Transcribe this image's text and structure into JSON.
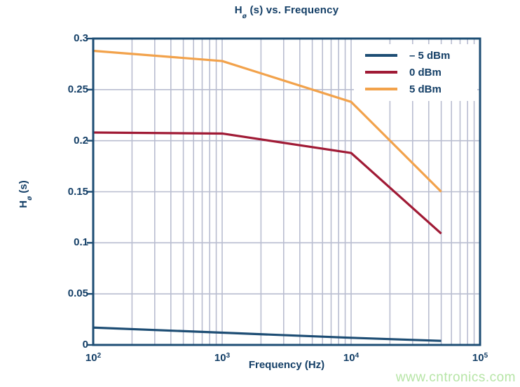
{
  "colors": {
    "text_navy": "#133e66",
    "frame_navy": "#1d4d74",
    "gridline": "#b9bdd0",
    "background": "#ffffff",
    "watermark_green": "#b6e5a6"
  },
  "title": {
    "prefix": "H",
    "sub": "ø",
    "suffix": " (s) vs. Frequency"
  },
  "y_axis_title": {
    "prefix": "H",
    "sub": "ø",
    "suffix": " (s)"
  },
  "watermark": {
    "text": "www.cntronics.com"
  },
  "chart_data": {
    "type": "line",
    "title": "H_ø (s) vs. Frequency",
    "xlabel": "Frequency (Hz)",
    "ylabel": "H_ø (s)",
    "x_scale": "log",
    "xlim": [
      100,
      100000
    ],
    "ylim": [
      0,
      0.3
    ],
    "grid": true,
    "legend_position": "top-right",
    "x_ticks": [
      {
        "base": "10",
        "exp": "2",
        "value": 100
      },
      {
        "base": "10",
        "exp": "3",
        "value": 1000
      },
      {
        "base": "10",
        "exp": "4",
        "value": 10000
      },
      {
        "base": "10",
        "exp": "5",
        "value": 100000
      }
    ],
    "y_ticks": [
      {
        "label": "0",
        "value": 0
      },
      {
        "label": "0.05",
        "value": 0.05
      },
      {
        "label": "0.1",
        "value": 0.1
      },
      {
        "label": "0.15",
        "value": 0.15
      },
      {
        "label": "0.2",
        "value": 0.2
      },
      {
        "label": "0.25",
        "value": 0.25
      },
      {
        "label": "0.3",
        "value": 0.3
      }
    ],
    "series": [
      {
        "name": "– 5 dBm",
        "color": "#1d4d74",
        "x": [
          100,
          1000,
          10000,
          50000
        ],
        "y": [
          0.017,
          0.012,
          0.007,
          0.004
        ]
      },
      {
        "name": "0 dBm",
        "color": "#a01a35",
        "x": [
          100,
          1000,
          10000,
          50000
        ],
        "y": [
          0.208,
          0.207,
          0.188,
          0.109
        ]
      },
      {
        "name": "5 dBm",
        "color": "#f2a24b",
        "x": [
          100,
          1000,
          10000,
          50000
        ],
        "y": [
          0.288,
          0.278,
          0.238,
          0.15
        ]
      }
    ]
  }
}
